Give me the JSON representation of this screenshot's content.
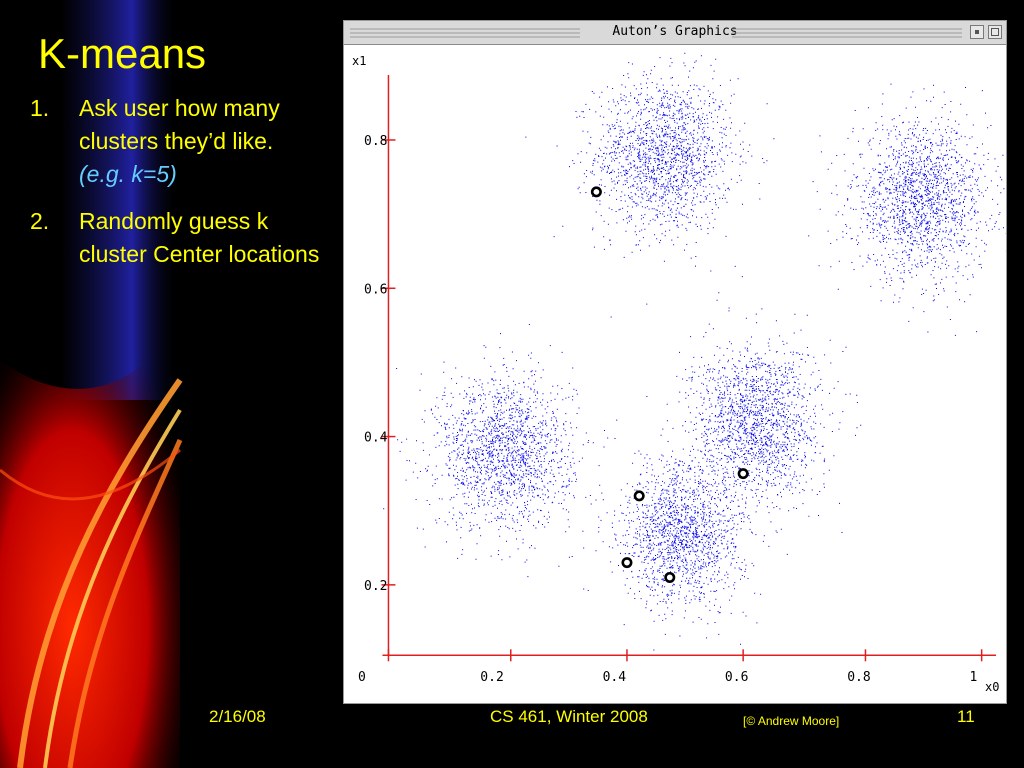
{
  "slide": {
    "title": "K-means",
    "bullets": [
      {
        "num": "1.",
        "text": "Ask user how many clusters they’d like.",
        "note": "(e.g. k=5)"
      },
      {
        "num": "2.",
        "text": "Randomly guess k cluster Center locations",
        "note": ""
      }
    ]
  },
  "window": {
    "title": "Auton’s Graphics"
  },
  "chart_data": {
    "type": "scatter",
    "title": "",
    "xlabel": "x0",
    "ylabel": "x1",
    "xlim": [
      0,
      1.04
    ],
    "ylim": [
      0.1,
      0.92
    ],
    "x_ticks": [
      "0",
      "0.2",
      "0.4",
      "0.6",
      "0.8",
      "1"
    ],
    "x_tick_values": [
      0,
      0.2,
      0.4,
      0.6,
      0.8,
      1.0
    ],
    "y_ticks": [
      "0.2",
      "0.4",
      "0.6",
      "0.8"
    ],
    "y_tick_values": [
      0.2,
      0.4,
      0.6,
      0.8
    ],
    "point_color": "#0000ee",
    "axis_color": "#e02020",
    "clusters": [
      {
        "cx": 0.49,
        "cy": 0.78,
        "sx": 0.056,
        "sy": 0.052,
        "n": 1700
      },
      {
        "cx": 0.91,
        "cy": 0.72,
        "sx": 0.055,
        "sy": 0.052,
        "n": 1700
      },
      {
        "cx": 0.23,
        "cy": 0.38,
        "sx": 0.055,
        "sy": 0.052,
        "n": 1700
      },
      {
        "cx": 0.64,
        "cy": 0.42,
        "sx": 0.052,
        "sy": 0.052,
        "n": 1700
      },
      {
        "cx": 0.52,
        "cy": 0.27,
        "sx": 0.05,
        "sy": 0.048,
        "n": 1600
      }
    ],
    "guess_centers": [
      {
        "x": 0.38,
        "y": 0.73
      },
      {
        "x": 0.62,
        "y": 0.35
      },
      {
        "x": 0.45,
        "y": 0.32
      },
      {
        "x": 0.43,
        "y": 0.23
      },
      {
        "x": 0.5,
        "y": 0.21
      }
    ]
  },
  "footer": {
    "date": "2/16/08",
    "course": "CS 461, Winter 2008",
    "credit": "[© Andrew Moore]",
    "page": "11"
  }
}
